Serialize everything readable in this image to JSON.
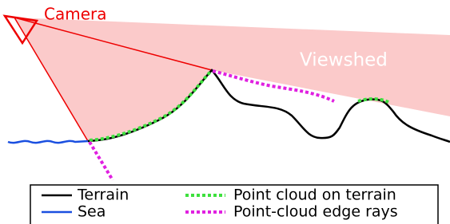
{
  "camera_label": "Camera",
  "viewshed_label": "Viewshed",
  "legend": {
    "items": [
      "Terrain",
      "Sea",
      "Point cloud on terrain",
      "Point-cloud edge rays"
    ]
  }
}
